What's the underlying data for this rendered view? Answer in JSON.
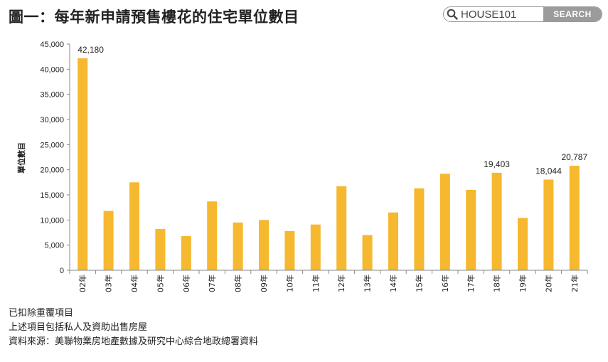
{
  "header": {
    "title": "圖一：每年新申請預售樓花的住宅單位數目"
  },
  "search": {
    "value": "HOUSE101",
    "button_label": "SEARCH"
  },
  "chart_data": {
    "type": "bar",
    "title": "",
    "xlabel": "",
    "ylabel": "單位數目",
    "ylim": [
      0,
      45000
    ],
    "yticks": [
      0,
      5000,
      10000,
      15000,
      20000,
      25000,
      30000,
      35000,
      40000,
      45000
    ],
    "ytick_labels": [
      "0",
      "5,000",
      "10,000",
      "15,000",
      "20,000",
      "25,000",
      "30,000",
      "35,000",
      "40,000",
      "45,000"
    ],
    "categories": [
      "02年",
      "03年",
      "04年",
      "05年",
      "06年",
      "07年",
      "08年",
      "09年",
      "10年",
      "11年",
      "12年",
      "13年",
      "14年",
      "15年",
      "16年",
      "17年",
      "18年",
      "19年",
      "20年",
      "21年"
    ],
    "values": [
      42180,
      11800,
      17500,
      8200,
      6800,
      13700,
      9500,
      10000,
      7800,
      9100,
      16700,
      7000,
      11500,
      16300,
      19200,
      16000,
      19403,
      10400,
      18044,
      20787
    ],
    "data_labels": [
      {
        "index": 0,
        "text": "42,180"
      },
      {
        "index": 16,
        "text": "19,403"
      },
      {
        "index": 18,
        "text": "18,044"
      },
      {
        "index": 19,
        "text": "20,787"
      }
    ],
    "bar_color": "#f5b82e",
    "grid": false,
    "legend": "none"
  },
  "notes": [
    "已扣除重覆項目",
    "上述項目包括私人及資助出售房屋",
    "資料來源：美聯物業房地產數據及研究中心綜合地政總署資料"
  ]
}
